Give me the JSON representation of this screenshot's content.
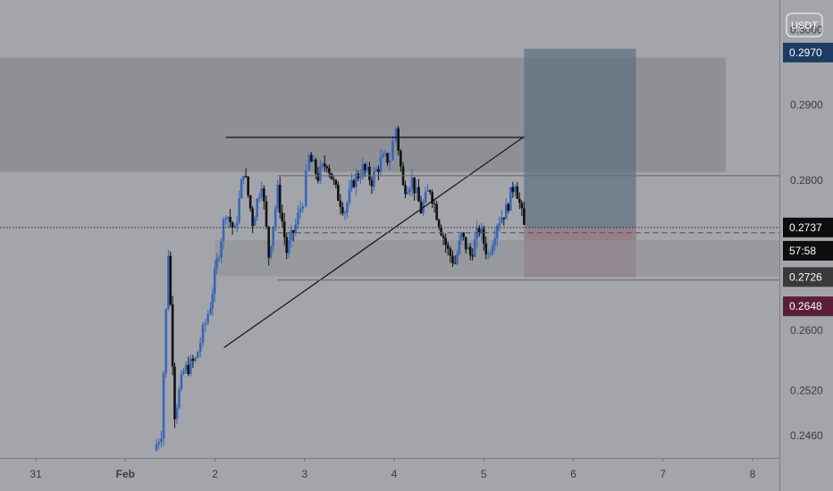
{
  "chart_data": {
    "type": "candlestick",
    "currency": "USDT",
    "price_scale": {
      "min": 0.243,
      "max": 0.304,
      "tick_labels": [
        "0.3000",
        "0.2900",
        "0.2800",
        "0.2600",
        "0.2520",
        "0.2460"
      ],
      "tick_values": [
        0.3,
        0.29,
        0.28,
        0.26,
        0.252,
        0.246
      ]
    },
    "time_scale": {
      "labels": [
        "31",
        "Feb",
        "2",
        "3",
        "4",
        "5",
        "6",
        "7",
        "8"
      ],
      "day_index": [
        0,
        1,
        2,
        3,
        4,
        5,
        6,
        7,
        8
      ],
      "min": -0.4,
      "max": 8.3
    },
    "price_tags": [
      {
        "label": "0.2970",
        "value": 0.297,
        "color": "#1c3c63"
      },
      {
        "label": "0.2737",
        "value": 0.2737,
        "color": "#0d0d0d"
      },
      {
        "label": "57:58",
        "value": 0.2706,
        "color": "#0d0d0d"
      },
      {
        "label": "0.2726",
        "value": 0.2671,
        "color": "#3a3a3a"
      },
      {
        "label": "0.2648",
        "value": 0.2632,
        "color": "#5a1f36"
      }
    ],
    "zones": [
      {
        "name": "supply-zone",
        "x0": -0.4,
        "x1": 7.7,
        "y0": 0.2811,
        "y1": 0.2963,
        "color": "#7e8085",
        "opacity": 0.55
      },
      {
        "name": "target-box",
        "x0": 5.45,
        "x1": 6.7,
        "y0": 0.2737,
        "y1": 0.2975,
        "color": "#5c6f80",
        "opacity": 0.7
      },
      {
        "name": "stop-box",
        "x0": 5.45,
        "x1": 6.7,
        "y0": 0.2671,
        "y1": 0.2737,
        "color": "#8c6a78",
        "opacity": 0.65
      },
      {
        "name": "demand-zone",
        "x0": 2.0,
        "x1": 8.3,
        "y0": 0.2672,
        "y1": 0.272,
        "color": "#8e9095",
        "opacity": 0.55
      }
    ],
    "lines": [
      {
        "name": "resistance-line",
        "x0": 2.12,
        "y0": 0.2857,
        "x1": 5.45,
        "y1": 0.2857,
        "color": "#111111"
      },
      {
        "name": "ascending-trendline",
        "x0": 2.1,
        "y0": 0.2577,
        "x1": 5.45,
        "y1": 0.2858,
        "color": "#111111"
      },
      {
        "name": "upper-range-line",
        "x0": 2.7,
        "y0": 0.2806,
        "x1": 8.3,
        "y1": 0.2806,
        "color": "#6a6c70"
      },
      {
        "name": "lower-range-line",
        "x0": 2.7,
        "y0": 0.2667,
        "x1": 8.3,
        "y1": 0.2667,
        "color": "#6a6c70"
      },
      {
        "name": "mid-dashed-line",
        "x0": 2.7,
        "y0": 0.273,
        "x1": 8.3,
        "y1": 0.273,
        "color": "#5a5c60",
        "dash": true
      },
      {
        "name": "last-price-dotted-line",
        "x0": -0.4,
        "y0": 0.2737,
        "x1": 8.3,
        "y1": 0.2737,
        "color": "#2a2a2a",
        "dotted": true
      }
    ],
    "path": [
      [
        1.32,
        0.244
      ],
      [
        1.4,
        0.2465
      ],
      [
        1.48,
        0.2705
      ],
      [
        1.55,
        0.249
      ],
      [
        1.65,
        0.2545
      ],
      [
        1.78,
        0.256
      ],
      [
        1.95,
        0.2635
      ],
      [
        2.02,
        0.269
      ],
      [
        2.12,
        0.276
      ],
      [
        2.22,
        0.273
      ],
      [
        2.32,
        0.2815
      ],
      [
        2.42,
        0.2745
      ],
      [
        2.52,
        0.28
      ],
      [
        2.6,
        0.27
      ],
      [
        2.7,
        0.2785
      ],
      [
        2.8,
        0.2705
      ],
      [
        2.9,
        0.274
      ],
      [
        2.98,
        0.2775
      ],
      [
        3.05,
        0.283
      ],
      [
        3.15,
        0.2805
      ],
      [
        3.25,
        0.2825
      ],
      [
        3.35,
        0.2785
      ],
      [
        3.45,
        0.276
      ],
      [
        3.55,
        0.28
      ],
      [
        3.65,
        0.2815
      ],
      [
        3.75,
        0.28
      ],
      [
        3.85,
        0.2825
      ],
      [
        3.95,
        0.283
      ],
      [
        4.02,
        0.287
      ],
      [
        4.1,
        0.279
      ],
      [
        4.2,
        0.28
      ],
      [
        4.3,
        0.276
      ],
      [
        4.4,
        0.279
      ],
      [
        4.5,
        0.2745
      ],
      [
        4.6,
        0.2705
      ],
      [
        4.68,
        0.269
      ],
      [
        4.75,
        0.2725
      ],
      [
        4.85,
        0.27
      ],
      [
        4.95,
        0.2735
      ],
      [
        5.05,
        0.27
      ],
      [
        5.15,
        0.2745
      ],
      [
        5.25,
        0.276
      ],
      [
        5.35,
        0.28
      ],
      [
        5.45,
        0.2737
      ]
    ]
  }
}
